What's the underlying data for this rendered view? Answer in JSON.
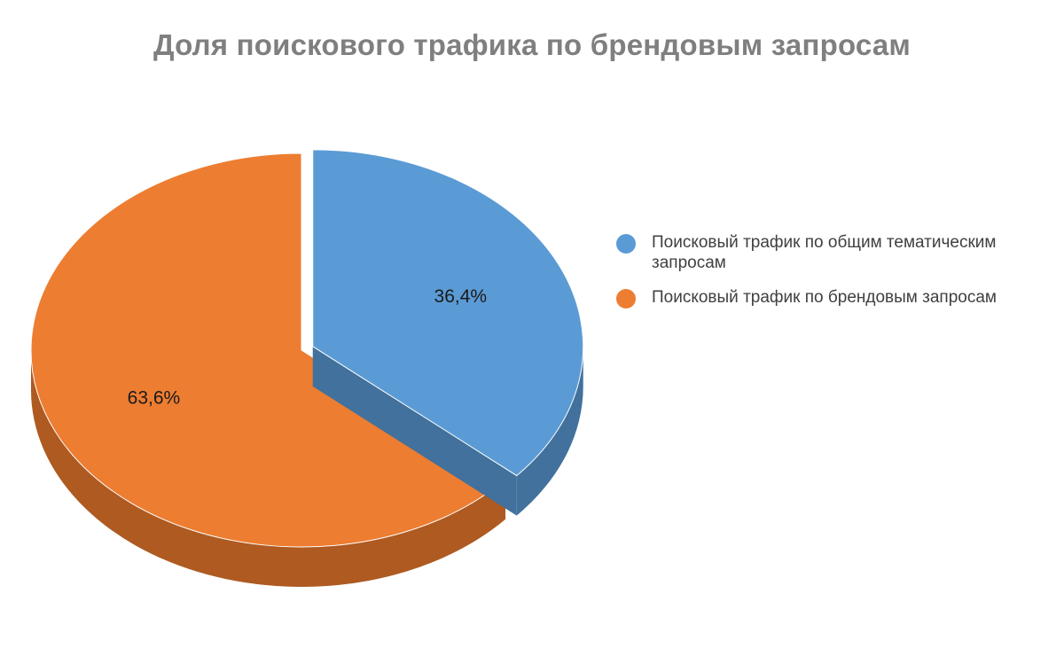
{
  "chart_data": {
    "type": "pie",
    "title": "Доля поискового трафика по брендовым запросам",
    "style": "3d-exploded",
    "legend_position": "right",
    "slices": [
      {
        "name": "Поисковый трафик по общим тематическим запросам",
        "value": 36.4,
        "label": "36,4%",
        "color": "#5b9bd5",
        "side_color": "#41719c",
        "exploded": true
      },
      {
        "name": "Поисковый трафик по брендовым запросам",
        "value": 63.6,
        "label": "63,6%",
        "color": "#ed7d31",
        "side_color": "#ae5a21",
        "exploded": false
      }
    ]
  }
}
